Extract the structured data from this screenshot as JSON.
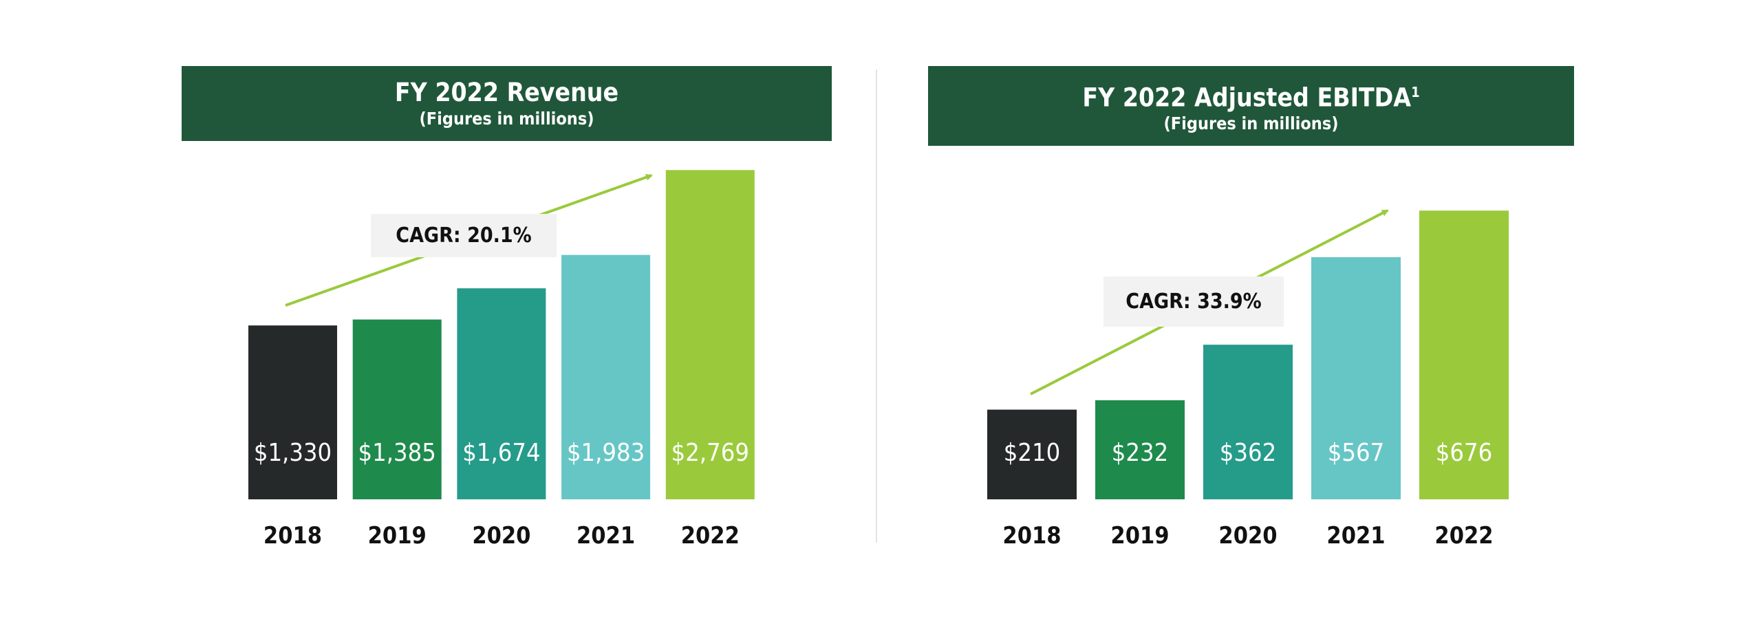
{
  "chart_data": [
    {
      "type": "bar",
      "title": "FY 2022 Revenue",
      "subtitle": "(Figures in millions)",
      "categories": [
        "2018",
        "2019",
        "2020",
        "2021",
        "2022"
      ],
      "values": [
        1330,
        1385,
        1674,
        1983,
        2769
      ],
      "data_labels": [
        "$1,330",
        "$1,385",
        "$1,674",
        "$1,983",
        "$2,769"
      ],
      "colors": [
        "#25292a",
        "#1e8a4c",
        "#259b8a",
        "#66c6c5",
        "#9aca3c"
      ],
      "annotation": "CAGR: 20.1%",
      "grid": false,
      "legend": "none"
    },
    {
      "type": "bar",
      "title": "FY 2022 Adjusted EBITDA",
      "title_superscript": "1",
      "subtitle": "(Figures in millions)",
      "categories": [
        "2018",
        "2019",
        "2020",
        "2021",
        "2022"
      ],
      "values": [
        210,
        232,
        362,
        567,
        676
      ],
      "data_labels": [
        "$210",
        "$232",
        "$362",
        "$567",
        "$676"
      ],
      "colors": [
        "#25292a",
        "#1e8a4c",
        "#259b8a",
        "#66c6c5",
        "#9aca3c"
      ],
      "annotation": "CAGR: 33.9%",
      "grid": false,
      "legend": "none"
    }
  ],
  "colors": {
    "header": "#20573a",
    "arrow": "#9aca3c",
    "annotation_bg": "#f2f2f2"
  }
}
